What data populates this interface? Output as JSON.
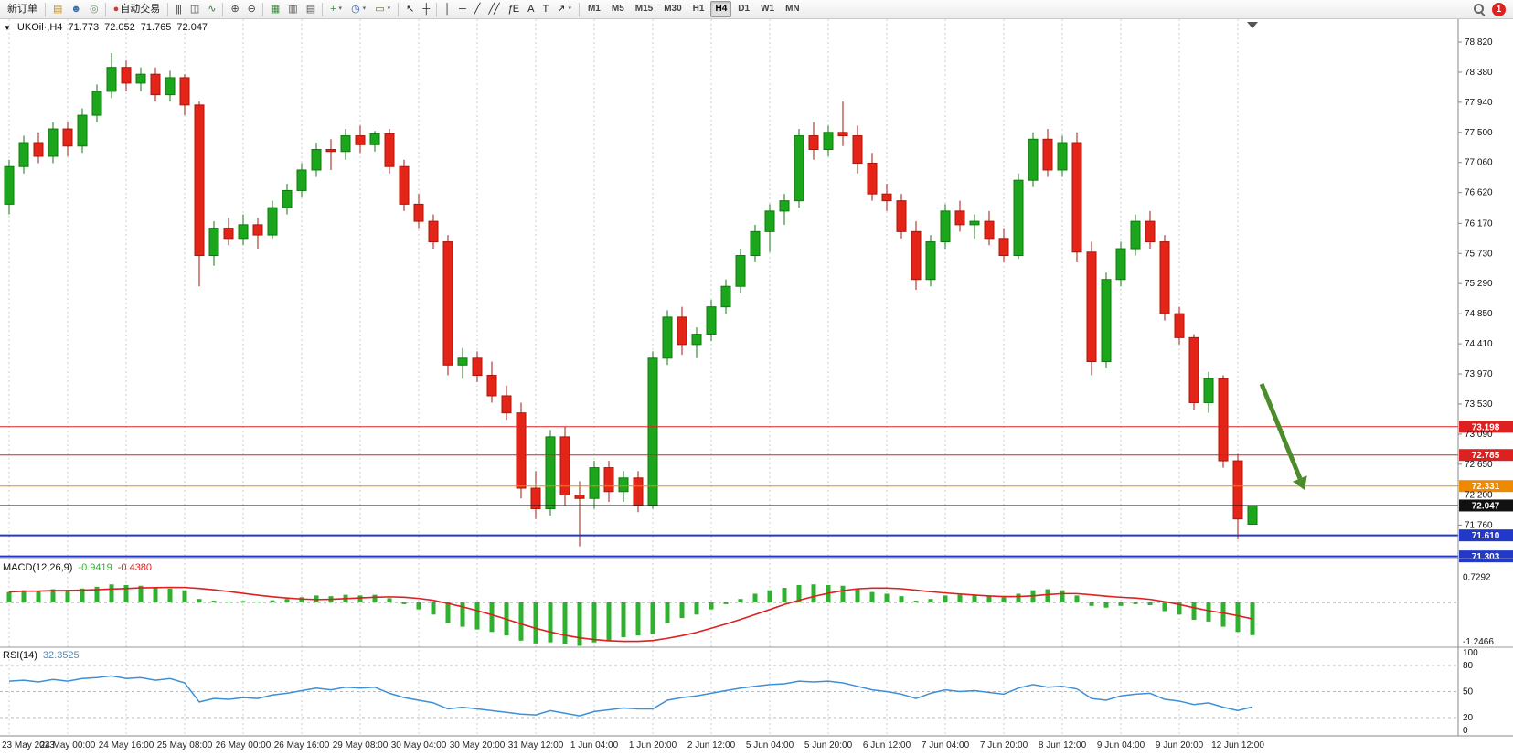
{
  "ui": {
    "collapse_glyph": "▼",
    "shift_marker_glyph": "▼"
  },
  "toolbar": {
    "groups": [
      {
        "name": "orders",
        "items": [
          {
            "name": "new-order-button",
            "type": "text",
            "label": "新订单"
          }
        ]
      },
      {
        "name": "panels",
        "items": [
          {
            "name": "charts-panel-icon",
            "type": "icon",
            "glyph": "▤",
            "glyph_color": "#c89010"
          },
          {
            "name": "profiles-icon",
            "type": "icon",
            "glyph": "☻",
            "glyph_color": "#3a6ea5"
          },
          {
            "name": "signals-icon",
            "type": "icon",
            "glyph": "◎",
            "glyph_color": "#6e8f6e"
          }
        ]
      },
      {
        "name": "autotrading",
        "items": [
          {
            "name": "autotrading-button",
            "type": "text",
            "label": "自动交易",
            "glyph": "●",
            "glyph_color": "#d23b2e"
          }
        ]
      },
      {
        "name": "chart-types",
        "items": [
          {
            "name": "bar-chart-icon",
            "type": "icon",
            "glyph": "|||",
            "glyph_color": "#444444"
          },
          {
            "name": "candlestick-chart-icon",
            "type": "icon",
            "glyph": "◫",
            "glyph_color": "#444444"
          },
          {
            "name": "line-chart-icon",
            "type": "icon",
            "glyph": "∿",
            "glyph_color": "#2e7d32"
          }
        ]
      },
      {
        "name": "zoom",
        "items": [
          {
            "name": "zoom-in-icon",
            "type": "icon",
            "glyph": "⊕",
            "glyph_color": "#444444"
          },
          {
            "name": "zoom-out-icon",
            "type": "icon",
            "glyph": "⊖",
            "glyph_color": "#444444"
          }
        ]
      },
      {
        "name": "windows",
        "items": [
          {
            "name": "tile-windows-icon",
            "type": "icon",
            "glyph": "▦",
            "glyph_color": "#3d8b3d"
          },
          {
            "name": "arrange-horizontal-icon",
            "type": "icon",
            "glyph": "▥",
            "glyph_color": "#555555"
          },
          {
            "name": "arrange-vertical-icon",
            "type": "icon",
            "glyph": "▤",
            "glyph_color": "#555555"
          }
        ]
      },
      {
        "name": "chart-objects",
        "items": [
          {
            "name": "indicators-button",
            "type": "icon",
            "glyph": "+",
            "glyph_color": "#1a9c1a",
            "caret": true
          },
          {
            "name": "periods-button",
            "type": "icon",
            "glyph": "◷",
            "glyph_color": "#2255aa",
            "caret": true
          },
          {
            "name": "templates-button",
            "type": "icon",
            "glyph": "▭",
            "glyph_color": "#7a5c2e",
            "caret": true
          }
        ]
      },
      {
        "name": "cursors",
        "items": [
          {
            "name": "cursor-icon",
            "type": "icon",
            "glyph": "↖",
            "glyph_color": "#222222"
          },
          {
            "name": "crosshair-icon",
            "type": "icon",
            "glyph": "┼",
            "glyph_color": "#222222"
          }
        ]
      },
      {
        "name": "line-studies",
        "items": [
          {
            "name": "vertical-line-icon",
            "type": "icon",
            "glyph": "│",
            "glyph_color": "#222222"
          },
          {
            "name": "horizontal-line-icon",
            "type": "icon",
            "glyph": "─",
            "glyph_color": "#222222"
          },
          {
            "name": "trendline-icon",
            "type": "icon",
            "glyph": "╱",
            "glyph_color": "#222222"
          },
          {
            "name": "equidistant-channel-icon",
            "type": "icon",
            "glyph": "╱╱",
            "glyph_color": "#222222"
          },
          {
            "name": "fibonacci-icon",
            "type": "icon",
            "glyph": "ƒE",
            "glyph_color": "#222222"
          },
          {
            "name": "text-icon",
            "type": "icon",
            "glyph": "A",
            "glyph_color": "#222222"
          },
          {
            "name": "text-label-icon",
            "type": "icon",
            "glyph": "T",
            "glyph_color": "#222222"
          },
          {
            "name": "arrows-icon",
            "type": "icon",
            "glyph": "↗",
            "glyph_color": "#222222",
            "caret": true
          }
        ]
      },
      {
        "name": "timeframes",
        "items": [
          {
            "name": "timeframe-m1",
            "type": "tf",
            "label": "M1"
          },
          {
            "name": "timeframe-m5",
            "type": "tf",
            "label": "M5"
          },
          {
            "name": "timeframe-m15",
            "type": "tf",
            "label": "M15"
          },
          {
            "name": "timeframe-m30",
            "type": "tf",
            "label": "M30"
          },
          {
            "name": "timeframe-h1",
            "type": "tf",
            "label": "H1"
          },
          {
            "name": "timeframe-h4",
            "type": "tf",
            "label": "H4",
            "active": true
          },
          {
            "name": "timeframe-d1",
            "type": "tf",
            "label": "D1"
          },
          {
            "name": "timeframe-w1",
            "type": "tf",
            "label": "W1"
          },
          {
            "name": "timeframe-mn",
            "type": "tf",
            "label": "MN"
          }
        ]
      }
    ],
    "right": {
      "badge": {
        "count": "1",
        "color": "#e02020"
      }
    }
  },
  "chart_data": {
    "type": "candlestick",
    "symbol": "UKOil",
    "timeframe": "H4",
    "ohlc_line": {
      "symbol": "UKOil·,H4",
      "open": "71.773",
      "high": "72.052",
      "low": "71.765",
      "close": "72.047"
    },
    "current_price": "72.047",
    "ylim": [
      71.28,
      79.15
    ],
    "grid": true,
    "price_axis_labels": [
      "78.820",
      "78.380",
      "77.940",
      "77.500",
      "77.060",
      "76.620",
      "76.170",
      "75.730",
      "75.290",
      "74.850",
      "74.410",
      "73.970",
      "73.530",
      "73.090",
      "72.650",
      "72.200",
      "71.760"
    ],
    "time_axis_labels": [
      "23 May 2023",
      "24 May 00:00",
      "24 May 16:00",
      "25 May 08:00",
      "26 May 00:00",
      "26 May 16:00",
      "29 May 08:00",
      "30 May 04:00",
      "30 May 20:00",
      "31 May 12:00",
      "1 Jun 04:00",
      "1 Jun 20:00",
      "2 Jun 12:00",
      "5 Jun 04:00",
      "5 Jun 20:00",
      "6 Jun 12:00",
      "7 Jun 04:00",
      "7 Jun 20:00",
      "8 Jun 12:00",
      "9 Jun 04:00",
      "9 Jun 20:00",
      "12 Jun 12:00"
    ],
    "candles_ohlc": [
      [
        76.45,
        77.1,
        76.3,
        77.0
      ],
      [
        77.0,
        77.45,
        76.9,
        77.35
      ],
      [
        77.35,
        77.5,
        77.05,
        77.15
      ],
      [
        77.15,
        77.65,
        77.05,
        77.55
      ],
      [
        77.55,
        77.65,
        77.15,
        77.3
      ],
      [
        77.3,
        77.85,
        77.2,
        77.75
      ],
      [
        77.75,
        78.2,
        77.65,
        78.1
      ],
      [
        78.1,
        78.66,
        78.0,
        78.45
      ],
      [
        78.45,
        78.55,
        78.1,
        78.22
      ],
      [
        78.22,
        78.45,
        78.1,
        78.35
      ],
      [
        78.35,
        78.45,
        77.95,
        78.05
      ],
      [
        78.05,
        78.4,
        77.95,
        78.3
      ],
      [
        78.3,
        78.35,
        77.75,
        77.9
      ],
      [
        77.9,
        77.95,
        75.25,
        75.7
      ],
      [
        75.7,
        76.2,
        75.55,
        76.1
      ],
      [
        76.1,
        76.25,
        75.85,
        75.95
      ],
      [
        75.95,
        76.3,
        75.85,
        76.15
      ],
      [
        76.15,
        76.25,
        75.8,
        76.0
      ],
      [
        76.0,
        76.5,
        75.95,
        76.4
      ],
      [
        76.4,
        76.75,
        76.3,
        76.65
      ],
      [
        76.65,
        77.05,
        76.55,
        76.95
      ],
      [
        76.95,
        77.35,
        76.85,
        77.25
      ],
      [
        77.25,
        77.4,
        76.95,
        77.22
      ],
      [
        77.22,
        77.55,
        77.1,
        77.45
      ],
      [
        77.45,
        77.6,
        77.2,
        77.32
      ],
      [
        77.32,
        77.52,
        77.22,
        77.48
      ],
      [
        77.48,
        77.55,
        76.9,
        77.0
      ],
      [
        77.0,
        77.1,
        76.35,
        76.45
      ],
      [
        76.45,
        76.6,
        76.1,
        76.2
      ],
      [
        76.2,
        76.3,
        75.8,
        75.9
      ],
      [
        75.9,
        76.0,
        73.95,
        74.1
      ],
      [
        74.1,
        74.35,
        73.9,
        74.2
      ],
      [
        74.2,
        74.3,
        73.85,
        73.95
      ],
      [
        73.95,
        74.15,
        73.55,
        73.65
      ],
      [
        73.65,
        73.8,
        73.3,
        73.4
      ],
      [
        73.4,
        73.55,
        72.15,
        72.3
      ],
      [
        72.3,
        72.55,
        71.85,
        72.0
      ],
      [
        72.0,
        73.15,
        71.9,
        73.05
      ],
      [
        73.05,
        73.2,
        72.05,
        72.2
      ],
      [
        72.2,
        72.4,
        71.45,
        72.15
      ],
      [
        72.15,
        72.7,
        72.0,
        72.6
      ],
      [
        72.6,
        72.7,
        72.1,
        72.25
      ],
      [
        72.25,
        72.55,
        72.1,
        72.45
      ],
      [
        72.45,
        72.55,
        71.95,
        72.05
      ],
      [
        72.05,
        74.3,
        72.0,
        74.2
      ],
      [
        74.2,
        74.9,
        74.1,
        74.8
      ],
      [
        74.8,
        74.95,
        74.25,
        74.4
      ],
      [
        74.4,
        74.65,
        74.2,
        74.55
      ],
      [
        74.55,
        75.05,
        74.45,
        74.95
      ],
      [
        74.95,
        75.35,
        74.85,
        75.25
      ],
      [
        75.25,
        75.8,
        75.15,
        75.7
      ],
      [
        75.7,
        76.15,
        75.6,
        76.05
      ],
      [
        76.05,
        76.45,
        75.75,
        76.35
      ],
      [
        76.35,
        76.6,
        76.15,
        76.5
      ],
      [
        76.5,
        77.55,
        76.4,
        77.45
      ],
      [
        77.45,
        77.65,
        77.1,
        77.25
      ],
      [
        77.25,
        77.6,
        77.15,
        77.5
      ],
      [
        77.5,
        77.95,
        77.3,
        77.45
      ],
      [
        77.45,
        77.6,
        76.9,
        77.05
      ],
      [
        77.05,
        77.2,
        76.5,
        76.6
      ],
      [
        76.6,
        76.75,
        76.35,
        76.5
      ],
      [
        76.5,
        76.6,
        75.95,
        76.05
      ],
      [
        76.05,
        76.2,
        75.2,
        75.35
      ],
      [
        75.35,
        76.0,
        75.25,
        75.9
      ],
      [
        75.9,
        76.45,
        75.8,
        76.35
      ],
      [
        76.35,
        76.5,
        76.05,
        76.15
      ],
      [
        76.15,
        76.3,
        75.95,
        76.2
      ],
      [
        76.2,
        76.35,
        75.85,
        75.95
      ],
      [
        75.95,
        76.1,
        75.6,
        75.7
      ],
      [
        75.7,
        76.9,
        75.65,
        76.8
      ],
      [
        76.8,
        77.5,
        76.7,
        77.4
      ],
      [
        77.4,
        77.55,
        76.85,
        76.95
      ],
      [
        76.95,
        77.45,
        76.85,
        77.35
      ],
      [
        77.35,
        77.5,
        75.6,
        75.75
      ],
      [
        75.75,
        75.9,
        73.95,
        74.15
      ],
      [
        74.15,
        75.45,
        74.05,
        75.35
      ],
      [
        75.35,
        75.9,
        75.25,
        75.8
      ],
      [
        75.8,
        76.3,
        75.7,
        76.2
      ],
      [
        76.2,
        76.35,
        75.8,
        75.9
      ],
      [
        75.9,
        76.0,
        74.75,
        74.85
      ],
      [
        74.85,
        74.95,
        74.4,
        74.5
      ],
      [
        74.5,
        74.55,
        73.45,
        73.55
      ],
      [
        73.55,
        74.0,
        73.4,
        73.9
      ],
      [
        73.9,
        73.95,
        72.6,
        72.7
      ],
      [
        72.7,
        72.8,
        71.55,
        71.85
      ],
      [
        71.773,
        72.052,
        71.765,
        72.047
      ]
    ],
    "horizontal_lines": [
      {
        "price": 73.198,
        "label": "73.198",
        "color": "#dd2020",
        "width": 1
      },
      {
        "price": 72.785,
        "label": "72.785",
        "color": "#dd2020",
        "width": 1
      },
      {
        "price": 72.331,
        "label": "72.331",
        "color": "#ef8a00",
        "width": 1
      },
      {
        "price": 72.047,
        "label": "72.047",
        "color": "#111111",
        "width": 1,
        "role": "current-price"
      },
      {
        "price": 71.61,
        "label": "71.610",
        "color": "#2238c8",
        "width": 2
      },
      {
        "price": 71.303,
        "label": "71.303",
        "color": "#2238c8",
        "width": 2
      }
    ],
    "arrow_annotation": {
      "direction": "down-right",
      "color": "#4c8c2b"
    },
    "colors": {
      "up": "#1ca61c",
      "up_border": "#0c7a0c",
      "down": "#e42417",
      "down_border": "#a8170d",
      "grid": "#cccccc",
      "axis_line": "#888888",
      "panel_divider": "#999999",
      "macd_histogram": "#2fb12f",
      "macd_signal": "#dd2020",
      "rsi_line": "#3f8fd6"
    },
    "indicators": {
      "macd": {
        "label": "MACD(12,26,9)",
        "value_main": "-0.9419",
        "value_signal": "-0.4380",
        "axis_labels": [
          "0.7292",
          "-1.2466"
        ],
        "histogram": [
          0.3,
          0.35,
          0.33,
          0.38,
          0.36,
          0.4,
          0.45,
          0.52,
          0.5,
          0.48,
          0.42,
          0.4,
          0.35,
          0.1,
          0.05,
          0.02,
          0.04,
          0.02,
          0.06,
          0.1,
          0.15,
          0.2,
          0.18,
          0.22,
          0.2,
          0.22,
          0.12,
          -0.05,
          -0.2,
          -0.35,
          -0.6,
          -0.7,
          -0.78,
          -0.85,
          -0.95,
          -1.1,
          -1.18,
          -1.15,
          -1.2,
          -1.25,
          -1.15,
          -1.1,
          -1.0,
          -0.95,
          -0.9,
          -0.6,
          -0.45,
          -0.35,
          -0.2,
          -0.05,
          0.1,
          0.25,
          0.35,
          0.42,
          0.5,
          0.52,
          0.5,
          0.48,
          0.4,
          0.3,
          0.25,
          0.18,
          0.05,
          0.1,
          0.2,
          0.22,
          0.2,
          0.18,
          0.15,
          0.25,
          0.35,
          0.38,
          0.35,
          0.2,
          -0.1,
          -0.15,
          -0.1,
          -0.05,
          -0.08,
          -0.25,
          -0.35,
          -0.5,
          -0.55,
          -0.7,
          -0.85,
          -0.9419
        ]
      },
      "rsi": {
        "label": "RSI(14)",
        "value": "32.3525",
        "levels": [
          "100",
          "80",
          "50",
          "20",
          "0"
        ],
        "level_lines": [
          80,
          50,
          20
        ],
        "values": [
          62,
          63,
          61,
          64,
          62,
          65,
          66,
          68,
          65,
          66,
          63,
          65,
          60,
          38,
          42,
          41,
          43,
          42,
          46,
          48,
          51,
          54,
          52,
          55,
          54,
          55,
          48,
          43,
          40,
          37,
          30,
          32,
          30,
          28,
          26,
          24,
          23,
          28,
          25,
          22,
          27,
          29,
          31,
          30,
          30,
          40,
          43,
          45,
          48,
          51,
          54,
          56,
          58,
          59,
          62,
          61,
          62,
          60,
          56,
          52,
          50,
          47,
          42,
          48,
          52,
          50,
          51,
          49,
          47,
          54,
          58,
          55,
          56,
          53,
          42,
          40,
          45,
          47,
          48,
          41,
          39,
          35,
          37,
          32,
          28,
          32.35
        ]
      }
    }
  }
}
